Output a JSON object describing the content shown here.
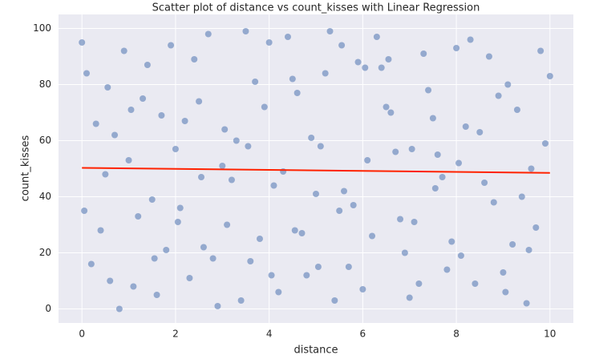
{
  "chart_data": {
    "type": "scatter",
    "title": "Scatter plot of distance vs count_kisses with Linear Regression",
    "x_label": "distance",
    "y_label": "count_kisses",
    "xlim": [
      -0.5,
      10.5
    ],
    "ylim": [
      -5,
      105
    ],
    "xticks": [
      0,
      2,
      4,
      6,
      8,
      10
    ],
    "yticks": [
      0,
      20,
      40,
      60,
      80,
      100
    ],
    "grid": true,
    "series": [
      {
        "type": "scatter",
        "color": "#4c72b0",
        "x": [
          0.0,
          0.2,
          0.5,
          0.9,
          1.3,
          1.6,
          2.0,
          2.4,
          2.8,
          3.1,
          3.5,
          3.9,
          0.1,
          0.4,
          0.7,
          1.1,
          1.5,
          1.9,
          2.2,
          2.6,
          3.0,
          3.4,
          3.7,
          4.1,
          4.4,
          4.8,
          5.1,
          5.5,
          5.9,
          6.2,
          6.6,
          7.0,
          7.3,
          7.7,
          8.1,
          8.5,
          4.2,
          4.6,
          5.0,
          5.3,
          5.7,
          6.1,
          6.4,
          6.8,
          7.2,
          7.5,
          7.9,
          8.3,
          8.8,
          9.1,
          9.5,
          9.9,
          10.0,
          8.6,
          9.0,
          9.3,
          9.7,
          9.8,
          0.3,
          0.6,
          1.0,
          1.4,
          1.8,
          2.1,
          2.5,
          2.9,
          3.3,
          3.6,
          4.0,
          4.3,
          4.7,
          5.2,
          5.6,
          6.0,
          6.3,
          6.7,
          7.1,
          7.4,
          7.8,
          8.2,
          8.7,
          9.2,
          9.6,
          0.8,
          1.2,
          1.7,
          2.3,
          2.7,
          3.2,
          3.8,
          4.5,
          4.9,
          5.4,
          5.8,
          6.5,
          6.9,
          7.6,
          8.0,
          8.4,
          8.9,
          9.4,
          0.05,
          1.55,
          3.05,
          4.55,
          6.05,
          7.55,
          9.05,
          0.55,
          2.05,
          3.55,
          5.05,
          6.55,
          8.05,
          9.55,
          1.05,
          2.55,
          4.05,
          5.55,
          7.05
        ],
        "values": [
          95,
          16,
          48,
          92,
          75,
          5,
          57,
          89,
          18,
          30,
          99,
          72,
          84,
          28,
          62,
          8,
          39,
          94,
          67,
          22,
          51,
          3,
          81,
          44,
          97,
          12,
          58,
          35,
          88,
          26,
          70,
          4,
          91,
          47,
          19,
          63,
          6,
          77,
          41,
          99,
          15,
          53,
          86,
          32,
          9,
          68,
          24,
          96,
          38,
          80,
          2,
          59,
          83,
          45,
          13,
          71,
          29,
          92,
          66,
          10,
          53,
          87,
          21,
          36,
          74,
          1,
          60,
          17,
          95,
          49,
          27,
          84,
          42,
          7,
          97,
          56,
          31,
          78,
          14,
          65,
          90,
          23,
          50,
          0,
          33,
          69,
          11,
          98,
          46,
          25,
          82,
          61,
          3,
          37,
          72,
          20,
          55,
          93,
          9,
          76,
          40,
          35,
          18,
          64,
          28,
          86,
          43,
          6,
          79,
          31,
          58,
          15,
          89,
          52,
          21,
          71,
          47,
          12,
          94,
          57
        ]
      },
      {
        "type": "line",
        "color": "#ff2200",
        "x": [
          0,
          10
        ],
        "values": [
          50.3,
          48.5
        ]
      }
    ]
  }
}
